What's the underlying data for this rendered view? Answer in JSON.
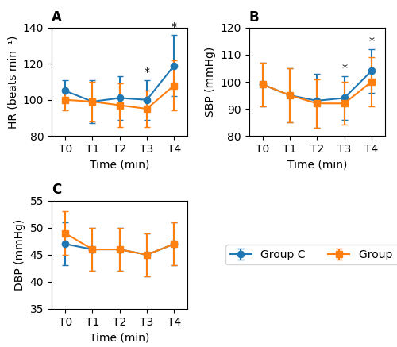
{
  "chart_data": [
    {
      "type": "line",
      "title": "A",
      "xlabel": "Time (min)",
      "ylabel": "HR (beats min⁻¹)",
      "categories": [
        "T0",
        "T1",
        "T2",
        "T3",
        "T4"
      ],
      "series": [
        {
          "name": "Group C",
          "marker": "o",
          "line_style": "solid",
          "values": [
            105,
            99,
            101,
            100,
            119
          ],
          "errors": [
            6,
            12,
            12,
            11,
            17
          ]
        },
        {
          "name": "Group D",
          "marker": "s",
          "line_style": "solid",
          "values": [
            100,
            99,
            97,
            95,
            108
          ],
          "errors": [
            6,
            11,
            12,
            10,
            14
          ]
        }
      ],
      "ylim": [
        80,
        140
      ],
      "yticks": [
        80,
        100,
        120,
        140
      ],
      "annotations": [
        {
          "text": "*",
          "category": "T3"
        },
        {
          "text": "*",
          "category": "T4"
        }
      ],
      "legend": "center"
    },
    {
      "type": "line",
      "title": "B",
      "xlabel": "Time (min)",
      "ylabel": "SBP (mmHg)",
      "categories": [
        "T0",
        "T1",
        "T2",
        "T3",
        "T4"
      ],
      "series": [
        {
          "name": "Group C",
          "marker": "o",
          "line_style": "solid",
          "values": [
            99,
            95,
            93,
            94,
            104
          ],
          "errors": [
            8,
            10,
            10,
            8,
            8
          ]
        },
        {
          "name": "Group D",
          "marker": "s",
          "line_style": "solid",
          "values": [
            99,
            95,
            92,
            92,
            100
          ],
          "errors": [
            8,
            10,
            9,
            8,
            9
          ]
        }
      ],
      "ylim": [
        80,
        120
      ],
      "yticks": [
        80,
        90,
        100,
        110,
        120
      ],
      "annotations": [
        {
          "text": "*",
          "category": "T3"
        },
        {
          "text": "*",
          "category": "T4"
        }
      ]
    },
    {
      "type": "line",
      "title": "C",
      "xlabel": "Time (min)",
      "ylabel": "DBP (mmHg)",
      "categories": [
        "T0",
        "T1",
        "T2",
        "T3",
        "T4"
      ],
      "series": [
        {
          "name": "Group C",
          "marker": "o",
          "line_style": "solid",
          "values": [
            47,
            46,
            46,
            45,
            47
          ],
          "errors": [
            4,
            4,
            4,
            4,
            4
          ]
        },
        {
          "name": "Group D",
          "marker": "s",
          "line_style": "solid",
          "values": [
            49,
            46,
            46,
            45,
            47
          ],
          "errors": [
            4,
            4,
            4,
            4,
            4
          ]
        }
      ],
      "ylim": [
        35,
        55
      ],
      "yticks": [
        35,
        40,
        45,
        50,
        55
      ]
    }
  ]
}
